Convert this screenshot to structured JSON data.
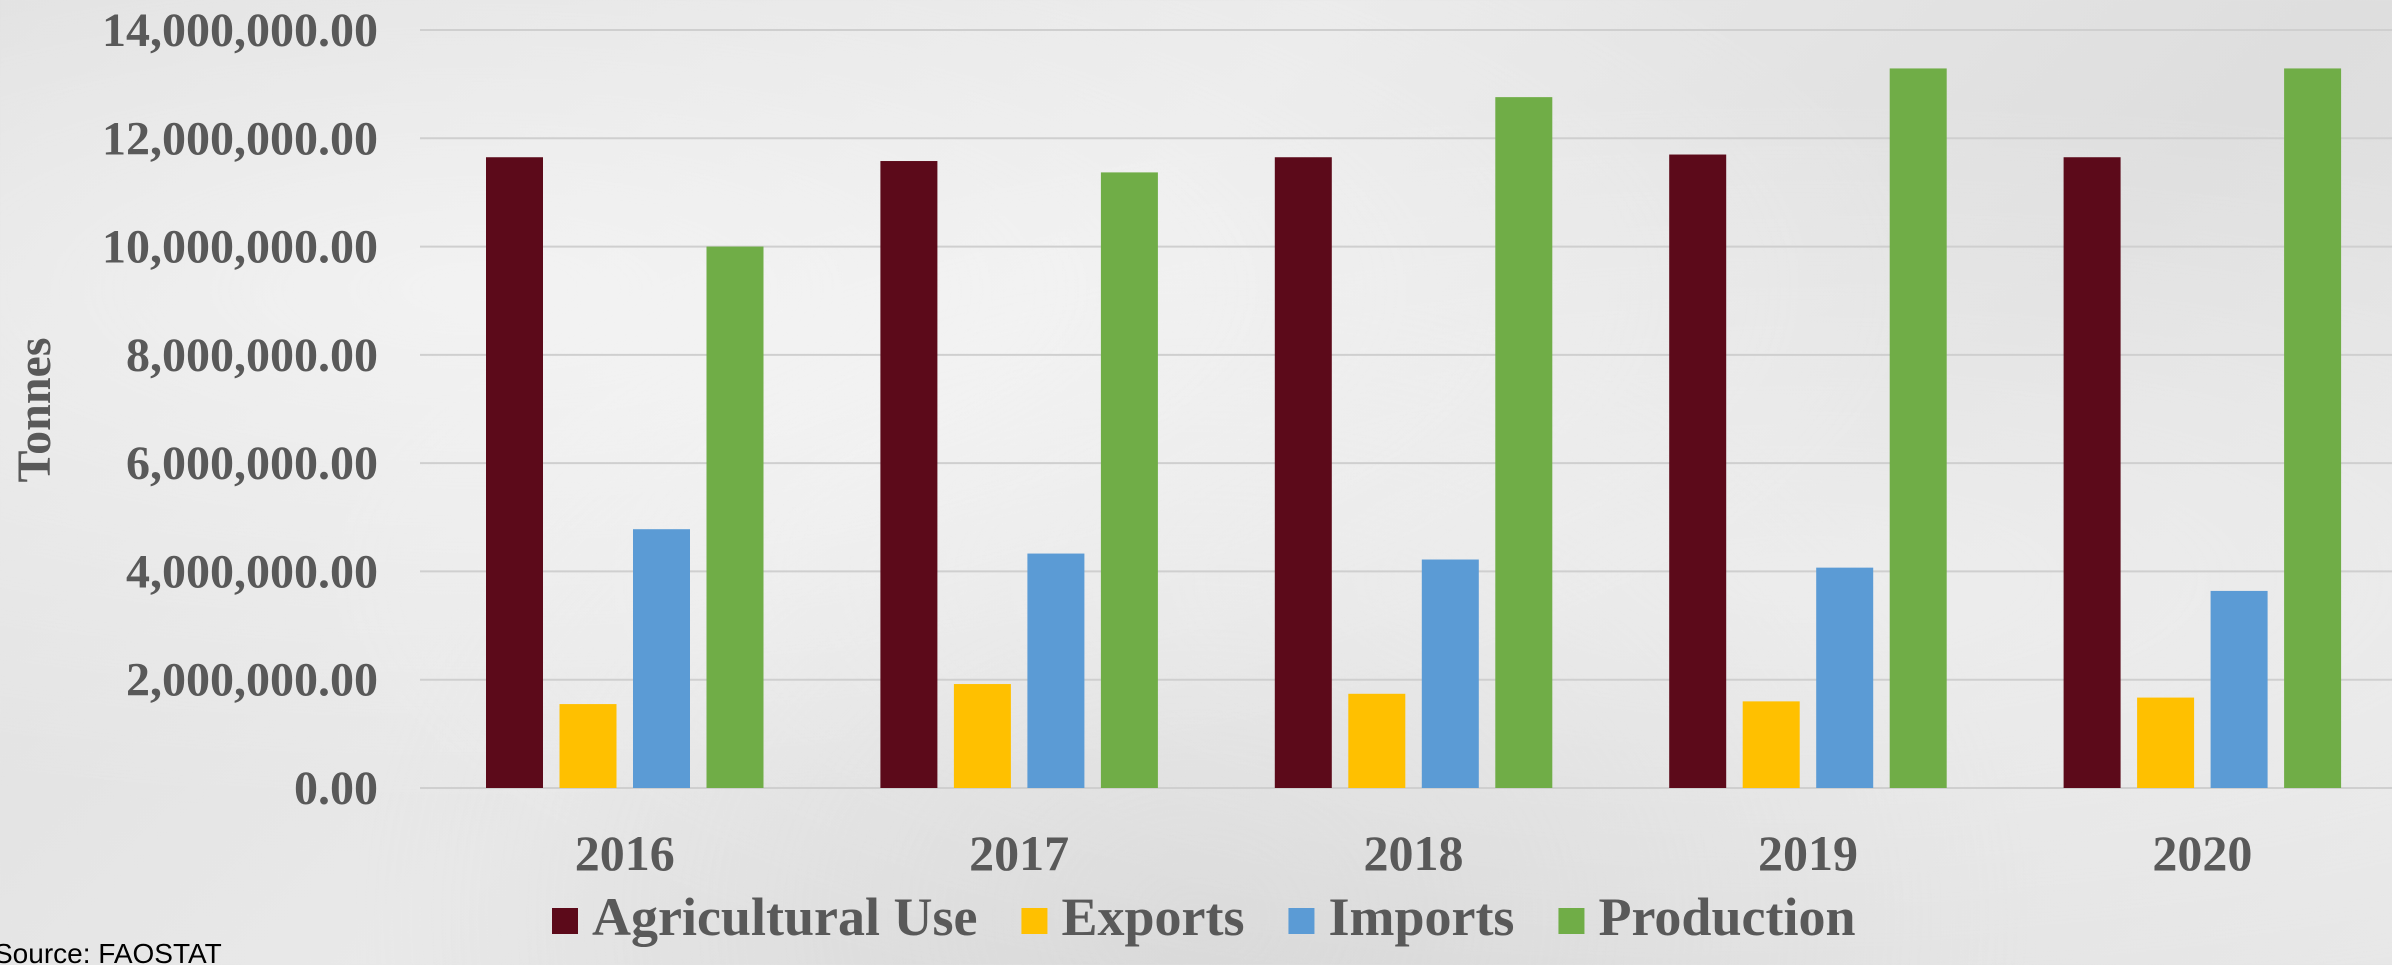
{
  "chart_data": {
    "type": "bar",
    "title": "",
    "xlabel": "",
    "ylabel": "Tonnes",
    "ylim": [
      0,
      14000000
    ],
    "yticks": [
      0,
      2000000,
      4000000,
      6000000,
      8000000,
      10000000,
      12000000,
      14000000
    ],
    "ytick_labels": [
      "0.00",
      "2,000,000.00",
      "4,000,000.00",
      "6,000,000.00",
      "8,000,000.00",
      "10,000,000.00",
      "12,000,000.00",
      "14,000,000.00"
    ],
    "categories": [
      "2016",
      "2017",
      "2018",
      "2019",
      "2020"
    ],
    "grid": "horizontal",
    "legend_position": "bottom",
    "series": [
      {
        "name": "Agricultural Use",
        "color": "#5c0a1a",
        "values": [
          11650000,
          11580000,
          11650000,
          11700000,
          11650000
        ]
      },
      {
        "name": "Exports",
        "color": "#ffc000",
        "values": [
          1550000,
          1920000,
          1740000,
          1600000,
          1670000
        ]
      },
      {
        "name": "Imports",
        "color": "#5b9bd5",
        "values": [
          4780000,
          4330000,
          4220000,
          4070000,
          3640000
        ]
      },
      {
        "name": "Production",
        "color": "#70ad47",
        "values": [
          10000000,
          11370000,
          12760000,
          13290000,
          13290000
        ]
      }
    ]
  },
  "source_note": "Source: FAOSTAT"
}
